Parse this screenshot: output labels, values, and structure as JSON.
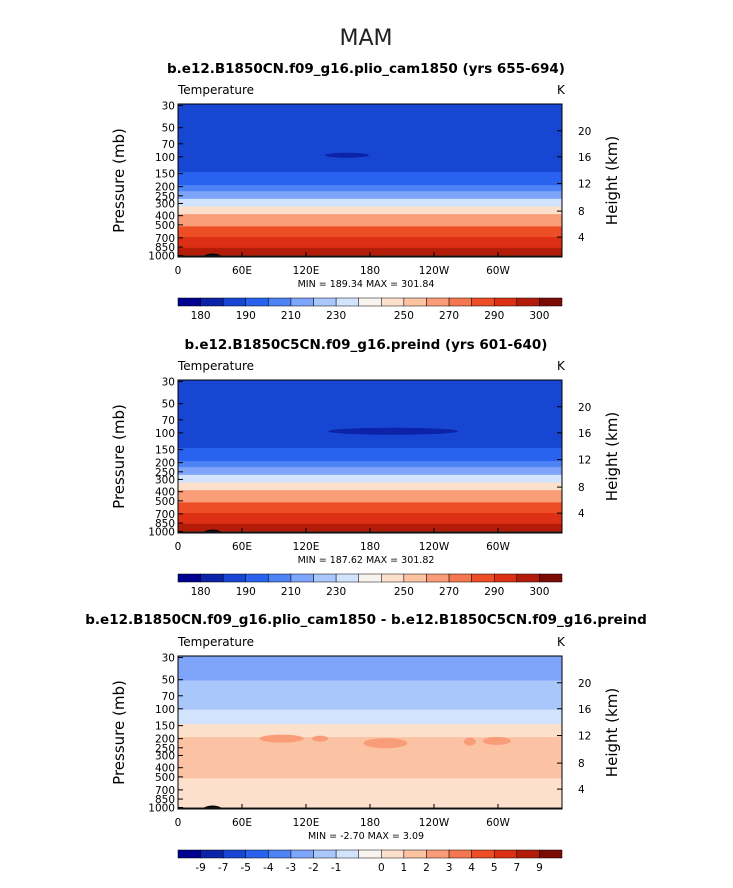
{
  "page_title": "MAM",
  "chart_data": [
    {
      "type": "heatmap",
      "title": "b.e12.B1850CN.f09_g16.plio_cam1850 (yrs 655-694)",
      "left_label": "Temperature",
      "units": "K",
      "ylabel": "Pressure (mb)",
      "ylabel_right": "Height (km)",
      "x_ticks": [
        "0",
        "60E",
        "120E",
        "180",
        "120W",
        "60W"
      ],
      "y_ticks": [
        "30",
        "50",
        "70",
        "100",
        "150",
        "200",
        "250",
        "300",
        "400",
        "500",
        "700",
        "850",
        "1000"
      ],
      "y_right_ticks": [
        "20",
        "16",
        "12",
        "8",
        "4"
      ],
      "stats": "MIN = 189.34   MAX = 301.84",
      "colorbar_labels": [
        "180",
        "190",
        "210",
        "230",
        "250",
        "270",
        "290",
        "300"
      ],
      "colorbar_colors": [
        "#000090",
        "#0c22a8",
        "#1746d3",
        "#2862ee",
        "#4e83f6",
        "#7ea5fa",
        "#aac7fc",
        "#d2e4fd",
        "#f7f4f0",
        "#fde0cc",
        "#fcc2a4",
        "#f99d78",
        "#f5764f",
        "#ee4e26",
        "#dd2f13",
        "#b41c0a",
        "#7a0a04"
      ],
      "level_colors": [
        "#1746d3",
        "#1746d3",
        "#1746d3",
        "#1746d3",
        "#2862ee",
        "#4e83f6",
        "#7ea5fa",
        "#d2e4fd",
        "#fde0cc",
        "#f99d78",
        "#ee4e26",
        "#dd2f13",
        "#b41c0a"
      ]
    },
    {
      "type": "heatmap",
      "title": "b.e12.B1850C5CN.f09_g16.preind (yrs 601-640)",
      "left_label": "Temperature",
      "units": "K",
      "ylabel": "Pressure (mb)",
      "ylabel_right": "Height (km)",
      "x_ticks": [
        "0",
        "60E",
        "120E",
        "180",
        "120W",
        "60W"
      ],
      "y_ticks": [
        "30",
        "50",
        "70",
        "100",
        "150",
        "200",
        "250",
        "300",
        "400",
        "500",
        "700",
        "850",
        "1000"
      ],
      "y_right_ticks": [
        "20",
        "16",
        "12",
        "8",
        "4"
      ],
      "stats": "MIN = 187.62   MAX = 301.82",
      "colorbar_labels": [
        "180",
        "190",
        "210",
        "230",
        "250",
        "270",
        "290",
        "300"
      ],
      "colorbar_colors": [
        "#000090",
        "#0c22a8",
        "#1746d3",
        "#2862ee",
        "#4e83f6",
        "#7ea5fa",
        "#aac7fc",
        "#d2e4fd",
        "#f7f4f0",
        "#fde0cc",
        "#fcc2a4",
        "#f99d78",
        "#f5764f",
        "#ee4e26",
        "#dd2f13",
        "#b41c0a",
        "#7a0a04"
      ],
      "level_colors": [
        "#1746d3",
        "#1746d3",
        "#1746d3",
        "#1746d3",
        "#2862ee",
        "#4e83f6",
        "#7ea5fa",
        "#d2e4fd",
        "#fde0cc",
        "#f99d78",
        "#ee4e26",
        "#dd2f13",
        "#b41c0a"
      ]
    },
    {
      "type": "heatmap",
      "title": "b.e12.B1850CN.f09_g16.plio_cam1850 - b.e12.B1850C5CN.f09_g16.preind",
      "left_label": "Temperature",
      "units": "K",
      "ylabel": "Pressure (mb)",
      "ylabel_right": "Height (km)",
      "x_ticks": [
        "0",
        "60E",
        "120E",
        "180",
        "120W",
        "60W"
      ],
      "y_ticks": [
        "30",
        "50",
        "70",
        "100",
        "150",
        "200",
        "250",
        "300",
        "400",
        "500",
        "700",
        "850",
        "1000"
      ],
      "y_right_ticks": [
        "20",
        "16",
        "12",
        "8",
        "4"
      ],
      "stats": "MIN =  -2.70   MAX =   3.09",
      "colorbar_labels": [
        "-9",
        "-7",
        "-5",
        "-4",
        "-3",
        "-2",
        "-1",
        "0",
        "1",
        "2",
        "3",
        "4",
        "5",
        "7",
        "9"
      ],
      "colorbar_colors": [
        "#000090",
        "#0c22a8",
        "#1746d3",
        "#2862ee",
        "#4e83f6",
        "#7ea5fa",
        "#aac7fc",
        "#d2e4fd",
        "#f7f4f0",
        "#fde0cc",
        "#fcc2a4",
        "#f99d78",
        "#f5764f",
        "#ee4e26",
        "#dd2f13",
        "#b41c0a",
        "#7a0a04"
      ],
      "level_colors": [
        "#7ea5fa",
        "#aac7fc",
        "#aac7fc",
        "#d2e4fd",
        "#fde0cc",
        "#fcc2a4",
        "#fcc2a4",
        "#fcc2a4",
        "#fcc2a4",
        "#fcc2a4",
        "#fde0cc",
        "#fde0cc",
        "#fde0cc"
      ]
    }
  ]
}
